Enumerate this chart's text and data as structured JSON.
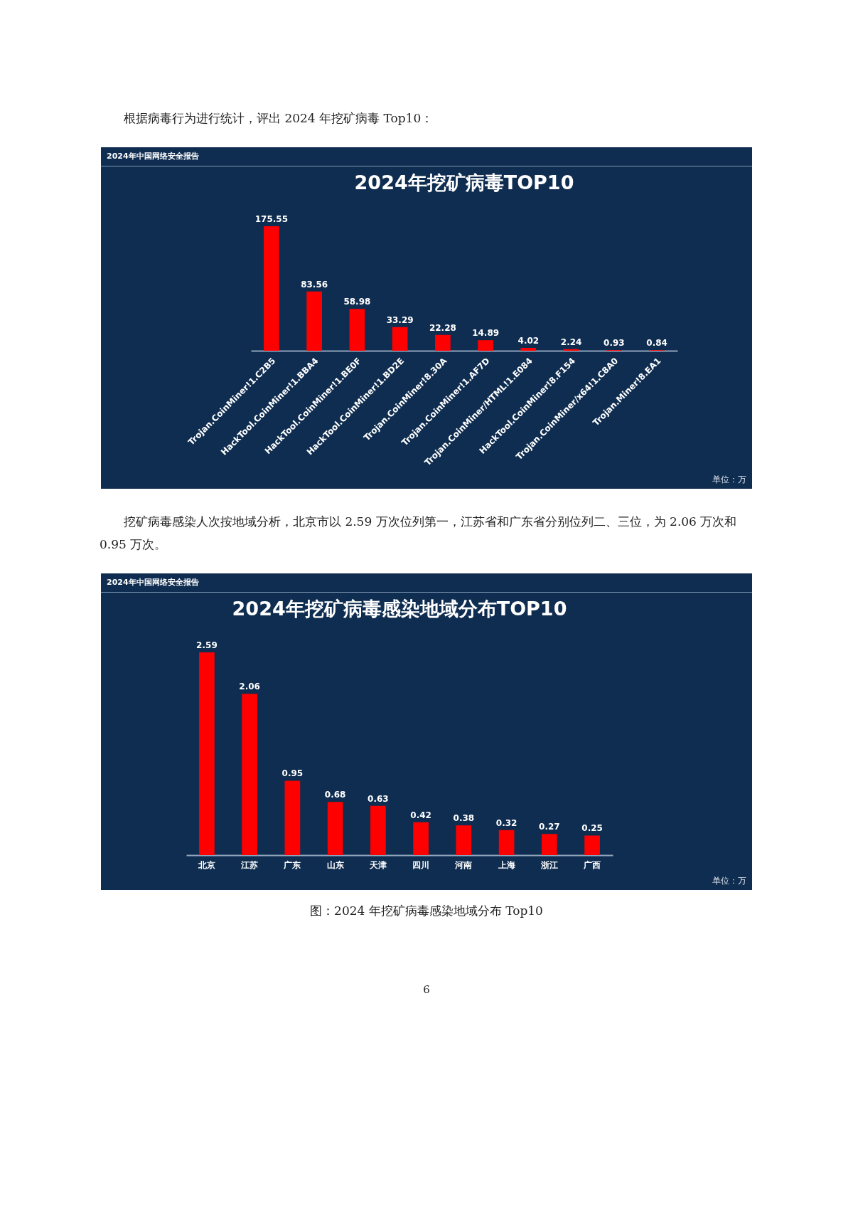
{
  "chart_data": [
    {
      "type": "bar",
      "title": "2024年挖矿病毒TOP10",
      "categories": [
        "Trojan.CoinMiner!1.C2B5",
        "HackTool.CoinMiner!1.BBA4",
        "HackTool.CoinMiner!1.BE0F",
        "HackTool.CoinMiner!1.BD2E",
        "Trojan.CoinMiner!8.30A",
        "Trojan.CoinMiner!1.AF7D",
        "Trojan.CoinMiner/HTML!1.E084",
        "HackTool.CoinMiner!8.F154",
        "Trojan.CoinMiner/x64!1.C8A0",
        "Trojan.Miner!8.EA1"
      ],
      "values": [
        175.55,
        83.56,
        58.98,
        33.29,
        22.28,
        14.89,
        4.02,
        2.24,
        0.93,
        0.84
      ],
      "color": "#ff0000",
      "data_labels": true,
      "annotations": [
        "根据病毒行为进行统计，评出 2024 年挖矿病毒 Top10：",
        "2024年中国网络安全报告",
        "单位：万"
      ]
    },
    {
      "type": "bar",
      "title": "2024年挖矿病毒感染地域分布TOP10",
      "categories": [
        "北京",
        "江苏",
        "广东",
        "山东",
        "天津",
        "四川",
        "河南",
        "上海",
        "浙江",
        "广西"
      ],
      "values": [
        2.59,
        2.06,
        0.95,
        0.68,
        0.63,
        0.42,
        0.38,
        0.32,
        0.27,
        0.25
      ],
      "color": "#ff0000",
      "data_labels": true,
      "annotations": [
        "挖矿病毒感染人次按地域分析，北京市以 2.59 万次位列第一，江苏省和广东省分别位列二、三位，为 2.06 万次和 0.95 万次。",
        "2024年中国网络安全报告",
        "单位：万",
        "图：2024 年挖矿病毒感染地域分布 Top10",
        "6"
      ]
    }
  ]
}
